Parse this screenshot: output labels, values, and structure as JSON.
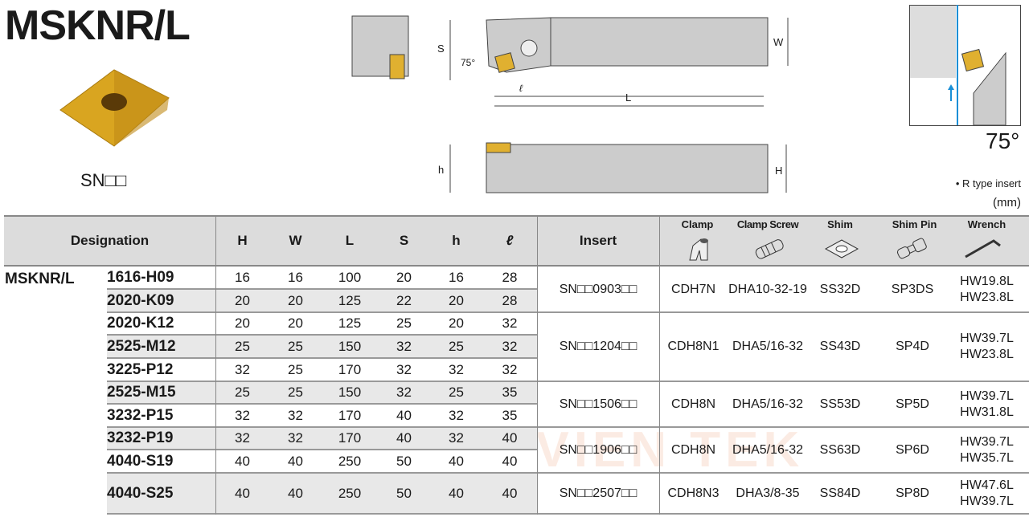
{
  "title": "MSKNR/L",
  "insert_code": "SN□□",
  "angle": "75°",
  "note_rtype": "• R type insert",
  "unit": "(mm)",
  "diagram_labels": {
    "S": "S",
    "W": "W",
    "L": "L",
    "l": "ℓ",
    "h": "h",
    "H": "H",
    "angle": "75°"
  },
  "watermark": "PHUONG VIEN TEK",
  "colors": {
    "header_bg": "#dcdcdc",
    "row_alt": "#e8e8e8",
    "insert_gold": "#d9a520",
    "arrow_blue": "#1a8fd6",
    "watermark": "#f5c8b0"
  },
  "table": {
    "headers": {
      "designation": "Designation",
      "H": "H",
      "W": "W",
      "L": "L",
      "S": "S",
      "h": "h",
      "l": "ℓ",
      "insert": "Insert",
      "clamp": "Clamp",
      "clamp_screw": "Clamp Screw",
      "shim": "Shim",
      "shim_pin": "Shim Pin",
      "wrench": "Wrench"
    },
    "family": "MSKNR/L",
    "rows": [
      {
        "model": "1616-H09",
        "H": "16",
        "W": "16",
        "L": "100",
        "S": "20",
        "h": "16",
        "l": "28"
      },
      {
        "model": "2020-K09",
        "H": "20",
        "W": "20",
        "L": "125",
        "S": "22",
        "h": "20",
        "l": "28"
      },
      {
        "model": "2020-K12",
        "H": "20",
        "W": "20",
        "L": "125",
        "S": "25",
        "h": "20",
        "l": "32"
      },
      {
        "model": "2525-M12",
        "H": "25",
        "W": "25",
        "L": "150",
        "S": "32",
        "h": "25",
        "l": "32"
      },
      {
        "model": "3225-P12",
        "H": "32",
        "W": "25",
        "L": "170",
        "S": "32",
        "h": "32",
        "l": "32"
      },
      {
        "model": "2525-M15",
        "H": "25",
        "W": "25",
        "L": "150",
        "S": "32",
        "h": "25",
        "l": "35"
      },
      {
        "model": "3232-P15",
        "H": "32",
        "W": "32",
        "L": "170",
        "S": "40",
        "h": "32",
        "l": "35"
      },
      {
        "model": "3232-P19",
        "H": "32",
        "W": "32",
        "L": "170",
        "S": "40",
        "h": "32",
        "l": "40"
      },
      {
        "model": "4040-S19",
        "H": "40",
        "W": "40",
        "L": "250",
        "S": "50",
        "h": "40",
        "l": "40"
      },
      {
        "model": "4040-S25",
        "H": "40",
        "W": "40",
        "L": "250",
        "S": "50",
        "h": "40",
        "l": "40"
      }
    ],
    "groups": [
      {
        "insert": "SN□□0903□□",
        "clamp": "CDH7N",
        "clamp_screw": "DHA10-32-19",
        "shim": "SS32D",
        "shim_pin": "SP3DS",
        "wrench1": "HW19.8L",
        "wrench2": "HW23.8L"
      },
      {
        "insert": "SN□□1204□□",
        "clamp": "CDH8N1",
        "clamp_screw": "DHA5/16-32",
        "shim": "SS43D",
        "shim_pin": "SP4D",
        "wrench1": "HW39.7L",
        "wrench2": "HW23.8L"
      },
      {
        "insert": "SN□□1506□□",
        "clamp": "CDH8N",
        "clamp_screw": "DHA5/16-32",
        "shim": "SS53D",
        "shim_pin": "SP5D",
        "wrench1": "HW39.7L",
        "wrench2": "HW31.8L"
      },
      {
        "insert": "SN□□1906□□",
        "clamp": "CDH8N",
        "clamp_screw": "DHA5/16-32",
        "shim": "SS63D",
        "shim_pin": "SP6D",
        "wrench1": "HW39.7L",
        "wrench2": "HW35.7L"
      },
      {
        "insert": "SN□□2507□□",
        "clamp": "CDH8N3",
        "clamp_screw": "DHA3/8-35",
        "shim": "SS84D",
        "shim_pin": "SP8D",
        "wrench1": "HW47.6L",
        "wrench2": "HW39.7L"
      }
    ]
  }
}
